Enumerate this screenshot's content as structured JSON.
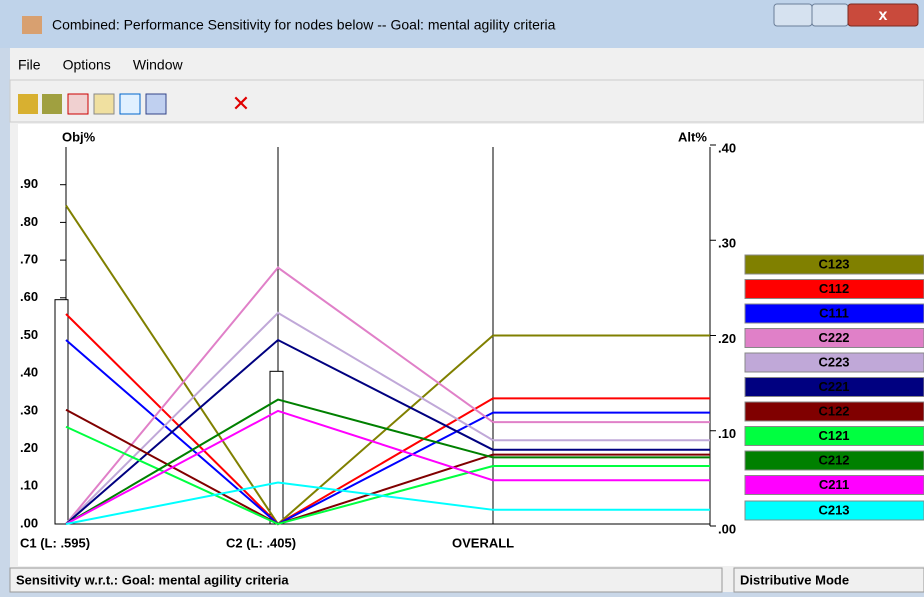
{
  "window": {
    "title": "Combined: Performance Sensitivity for nodes below -- Goal: mental agility criteria",
    "menu": [
      "File",
      "Options",
      "Window"
    ],
    "status_left": "Sensitivity w.r.t.: Goal: mental agility criteria",
    "status_right": "Distributive Mode"
  },
  "chart_data": {
    "type": "sensitivity",
    "categories": [
      "C1 (L: .595)",
      "C2 (L: .405)",
      "OVERALL"
    ],
    "weights": [
      0.595,
      0.405
    ],
    "ylabel": "Obj%",
    "y2label": "Alt%",
    "ylim": [
      0,
      1.0
    ],
    "yticks": [
      {
        "value": 0,
        "label": ".00"
      },
      {
        "value": 0.1,
        "label": ".10"
      },
      {
        "value": 0.2,
        "label": ".20"
      },
      {
        "value": 0.3,
        "label": ".30"
      },
      {
        "value": 0.4,
        "label": ".40"
      },
      {
        "value": 0.5,
        "label": ".50"
      },
      {
        "value": 0.6,
        "label": ".60"
      },
      {
        "value": 0.7,
        "label": ".70"
      },
      {
        "value": 0.8,
        "label": ".80"
      },
      {
        "value": 0.9,
        "label": ".90"
      }
    ],
    "y2lim": [
      0,
      0.4
    ],
    "y2ticks": [
      {
        "value": 0,
        "label": ".00"
      },
      {
        "value": 0.1,
        "label": ".10"
      },
      {
        "value": 0.2,
        "label": ".20"
      },
      {
        "value": 0.3,
        "label": ".30"
      },
      {
        "value": 0.4,
        "label": ".40"
      }
    ],
    "series": [
      {
        "name": "C123",
        "color": "#808000",
        "values": [
          0.845,
          0,
          0.2
        ]
      },
      {
        "name": "C112",
        "color": "#ff0000",
        "values": [
          0.557,
          0,
          0.134
        ]
      },
      {
        "name": "C111",
        "color": "#0000ff",
        "values": [
          0.488,
          0,
          0.119
        ]
      },
      {
        "name": "C222",
        "color": "#e080c8",
        "values": [
          0,
          0.68,
          0.109
        ]
      },
      {
        "name": "C223",
        "color": "#c0a8d8",
        "values": [
          0,
          0.56,
          0.09
        ]
      },
      {
        "name": "C221",
        "color": "#000080",
        "values": [
          0,
          0.488,
          0.08
        ]
      },
      {
        "name": "C122",
        "color": "#800000",
        "values": [
          0.303,
          0,
          0.075
        ]
      },
      {
        "name": "C121",
        "color": "#00ff40",
        "values": [
          0.258,
          0,
          0.063
        ]
      },
      {
        "name": "C212",
        "color": "#008000",
        "values": [
          0,
          0.33,
          0.072
        ]
      },
      {
        "name": "C211",
        "color": "#ff00ff",
        "values": [
          0,
          0.3,
          0.048
        ]
      },
      {
        "name": "C213",
        "color": "#00ffff",
        "values": [
          0,
          0.11,
          0.017
        ]
      }
    ]
  }
}
